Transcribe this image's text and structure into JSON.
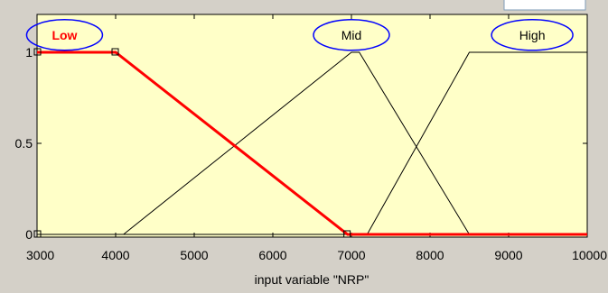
{
  "colors": {
    "window_background": "#d4d0c8",
    "plot_background": "#ffffc8",
    "selected_curve": "#ff0000",
    "curve": "#000000",
    "ellipse_outline": "#0000ff",
    "selected_label": "#ff0000",
    "label": "#000000"
  },
  "chart_data": {
    "type": "line",
    "title": "",
    "xlabel": "input variable \"NRP\"",
    "ylabel": "",
    "xlim": [
      3000,
      10000
    ],
    "ylim": [
      0,
      1.18
    ],
    "x_ticks": [
      3000,
      4000,
      5000,
      6000,
      7000,
      8000,
      9000,
      10000
    ],
    "x_tick_labels": [
      "3000",
      "4000",
      "5000",
      "6000",
      "7000",
      "8000",
      "9000",
      "10000"
    ],
    "y_ticks": [
      0,
      0.5,
      1
    ],
    "y_tick_labels": [
      "0",
      "0.5",
      "1"
    ],
    "grid": false,
    "series": [
      {
        "name": "Low",
        "selected": true,
        "points": [
          [
            3000,
            1
          ],
          [
            4000,
            1
          ],
          [
            6950,
            0
          ],
          [
            10000,
            0
          ]
        ],
        "handles": [
          [
            3000,
            1
          ],
          [
            4000,
            1
          ],
          [
            6950,
            0
          ],
          [
            3000,
            0
          ]
        ]
      },
      {
        "name": "Mid",
        "selected": false,
        "points": [
          [
            3000,
            0
          ],
          [
            4100,
            0
          ],
          [
            7000,
            1
          ],
          [
            7100,
            1
          ],
          [
            8500,
            0
          ],
          [
            10000,
            0
          ]
        ]
      },
      {
        "name": "High",
        "selected": false,
        "points": [
          [
            3000,
            0
          ],
          [
            7200,
            0
          ],
          [
            8500,
            1
          ],
          [
            10000,
            1
          ]
        ]
      }
    ],
    "labels": [
      {
        "text": "Low",
        "x": 3350,
        "y": 1.095,
        "selected": true
      },
      {
        "text": "Mid",
        "x": 7000,
        "y": 1.095,
        "selected": false
      },
      {
        "text": "High",
        "x": 9300,
        "y": 1.095,
        "selected": false
      }
    ]
  }
}
